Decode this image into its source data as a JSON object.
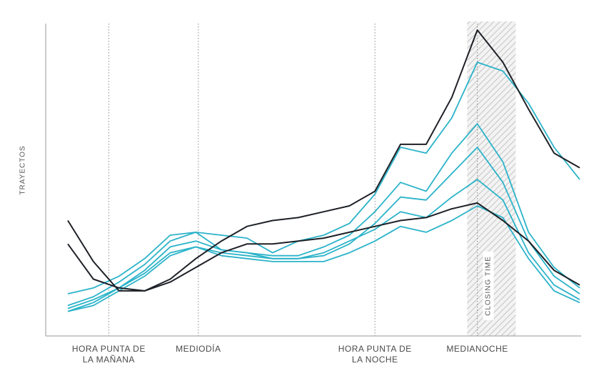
{
  "chart_data": {
    "type": "line",
    "ylabel": "TRAYECTOS",
    "xlim": [
      0,
      20
    ],
    "ylim": [
      0,
      100
    ],
    "grid": false,
    "reference_lines": [
      {
        "x": 1.6,
        "label": "HORA PUNTA DE LA MAÑANA"
      },
      {
        "x": 5.1,
        "label": "MEDIODÍA"
      },
      {
        "x": 12.0,
        "label": "HORA PUNTA DE LA NOCHE"
      },
      {
        "x": 16.0,
        "label": "MEDIANOCHE"
      }
    ],
    "shaded_band": {
      "x": [
        15.6,
        17.5
      ],
      "label": "CLOSING TIME"
    },
    "x": [
      0,
      1,
      2,
      3,
      4,
      5,
      6,
      7,
      8,
      9,
      10,
      11,
      12,
      13,
      14,
      15,
      16,
      17,
      18,
      19,
      20
    ],
    "series": [
      {
        "color": "#1e2127",
        "style": "solid",
        "values": [
          35,
          21,
          11,
          11,
          15,
          22,
          28,
          33,
          35,
          36,
          38,
          40,
          45,
          61,
          61,
          77,
          100,
          89,
          73,
          58,
          53
        ]
      },
      {
        "color": "#1e2127",
        "style": "solid",
        "values": [
          27,
          15,
          12,
          11,
          14,
          19,
          24,
          27,
          27,
          28,
          29,
          31,
          33,
          35,
          36,
          39,
          41,
          35,
          28,
          18,
          13
        ]
      },
      {
        "color": "#2bb3c9",
        "style": "solid",
        "values": [
          10,
          12,
          16,
          22,
          30,
          31,
          30,
          29,
          24,
          28,
          30,
          34,
          44,
          60,
          58,
          70,
          89,
          86,
          75,
          60,
          49
        ]
      },
      {
        "color": "#2bb3c9",
        "style": "solid",
        "values": [
          6,
          9,
          14,
          20,
          28,
          31,
          25,
          24,
          23,
          23,
          26,
          30,
          38,
          48,
          45,
          58,
          68,
          55,
          31,
          19,
          12
        ]
      },
      {
        "color": "#2bb3c9",
        "style": "solid",
        "values": [
          4,
          7,
          12,
          18,
          26,
          28,
          25,
          24,
          22,
          22,
          23,
          27,
          34,
          43,
          42,
          51,
          60,
          48,
          28,
          16,
          10
        ]
      },
      {
        "color": "#2bb3c9",
        "style": "solid",
        "values": [
          5,
          8,
          12,
          17,
          24,
          26,
          24,
          23,
          22,
          22,
          24,
          28,
          32,
          38,
          36,
          43,
          49,
          42,
          24,
          13,
          8
        ]
      },
      {
        "color": "#2bb3c9",
        "style": "solid",
        "values": [
          4,
          6,
          11,
          16,
          23,
          26,
          23,
          22,
          21,
          21,
          21,
          24,
          28,
          33,
          31,
          35,
          40,
          36,
          22,
          11,
          7
        ]
      }
    ]
  }
}
